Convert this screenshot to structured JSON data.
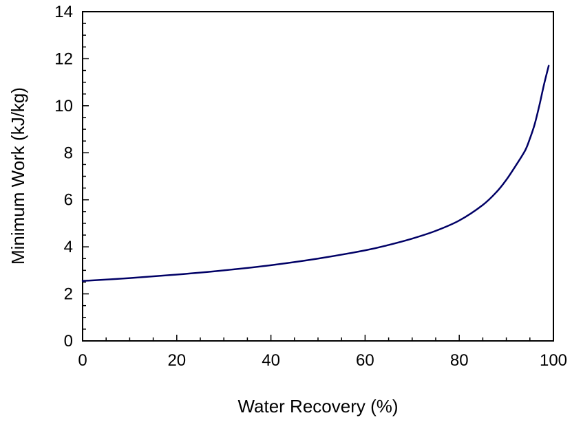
{
  "chart_data": {
    "type": "line",
    "title": "",
    "xlabel": "Water Recovery (%)",
    "ylabel": "Minimum Work (kJ/kg)",
    "xlim": [
      0,
      100
    ],
    "ylim": [
      0,
      14
    ],
    "x_ticks": [
      0,
      20,
      40,
      60,
      80,
      100
    ],
    "y_ticks": [
      0,
      2,
      4,
      6,
      8,
      10,
      12,
      14
    ],
    "grid": false,
    "legend": "none",
    "series": [
      {
        "color": "#000066",
        "x": [
          0,
          10,
          20,
          30,
          40,
          50,
          60,
          65,
          70,
          75,
          80,
          85,
          88,
          90,
          92,
          94,
          95,
          96,
          97,
          98,
          99
        ],
        "y": [
          2.55,
          2.67,
          2.82,
          3.0,
          3.22,
          3.5,
          3.85,
          4.08,
          4.35,
          4.68,
          5.12,
          5.78,
          6.35,
          6.85,
          7.45,
          8.1,
          8.6,
          9.2,
          10.0,
          10.9,
          11.7
        ]
      }
    ]
  }
}
